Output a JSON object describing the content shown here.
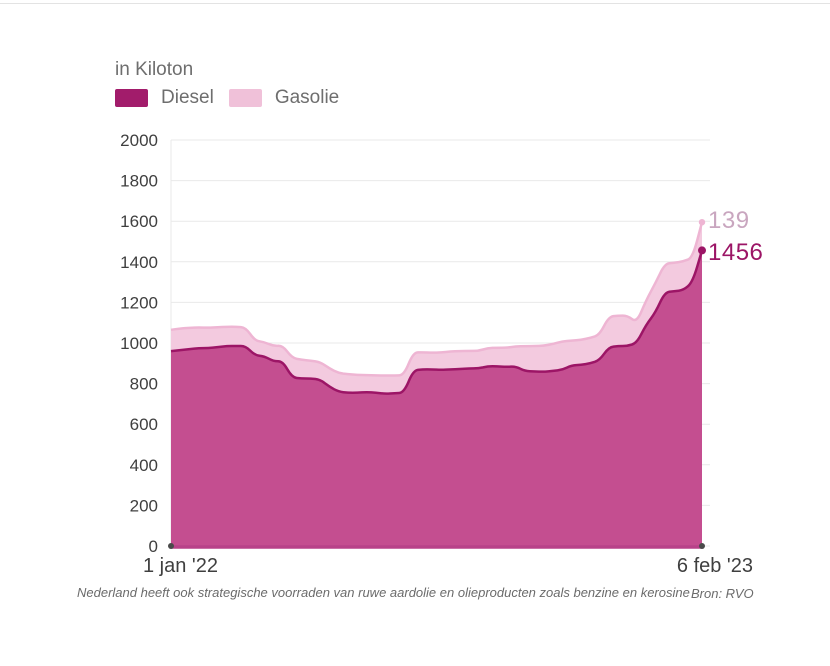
{
  "header": {
    "title": "in Kiloton"
  },
  "legend": [
    {
      "label": "Diesel",
      "color": "#a21c6b"
    },
    {
      "label": "Gasolie",
      "color": "#f0c1d9"
    }
  ],
  "chart_data": {
    "type": "area",
    "stacked": true,
    "title": "in Kiloton",
    "unit": "Kiloton",
    "x_start_label": "1 jan '22",
    "x_end_label": "6 feb '23",
    "ylim": [
      0,
      2000
    ],
    "yticks": [
      0,
      200,
      400,
      600,
      800,
      1000,
      1200,
      1400,
      1600,
      1800,
      2000
    ],
    "grid": true,
    "grid_color": "#e9e9e9",
    "axis_text_color": "#3f3f3f",
    "baseline_color": "#b84289",
    "axis_dot_color": "#4a4a4a",
    "series": [
      {
        "name": "Diesel",
        "color": "#c44e90",
        "stroke": "#9c1566",
        "values": [
          960,
          965,
          970,
          975,
          975,
          980,
          985,
          985,
          985,
          940,
          935,
          910,
          910,
          830,
          825,
          825,
          820,
          785,
          760,
          755,
          755,
          758,
          755,
          750,
          752,
          755,
          865,
          870,
          870,
          868,
          870,
          872,
          875,
          875,
          885,
          885,
          882,
          885,
          862,
          860,
          858,
          862,
          868,
          890,
          892,
          900,
          915,
          980,
          985,
          985,
          1000,
          1090,
          1150,
          1250,
          1255,
          1260,
          1300,
          1456
        ]
      },
      {
        "name": "Gasolie",
        "color": "#f3cadf",
        "stroke": "#eeb5d3",
        "values": [
          105,
          107,
          105,
          102,
          100,
          98,
          95,
          95,
          92,
          72,
          70,
          75,
          77,
          96,
          92,
          88,
          86,
          90,
          92,
          92,
          88,
          84,
          85,
          90,
          88,
          86,
          88,
          84,
          82,
          85,
          88,
          88,
          86,
          86,
          90,
          92,
          95,
          98,
          122,
          125,
          128,
          133,
          140,
          122,
          123,
          125,
          125,
          150,
          150,
          150,
          100,
          120,
          145,
          140,
          140,
          142,
          120,
          139
        ]
      }
    ],
    "end_labels": [
      {
        "series": "Gasolie",
        "value": 139
      },
      {
        "series": "Diesel",
        "value": 1456
      }
    ]
  },
  "footer": {
    "note": "Nederland heeft ook strategische voorraden van ruwe aardolie en olieproducten zoals benzine en kerosine",
    "source": "Bron: RVO"
  }
}
